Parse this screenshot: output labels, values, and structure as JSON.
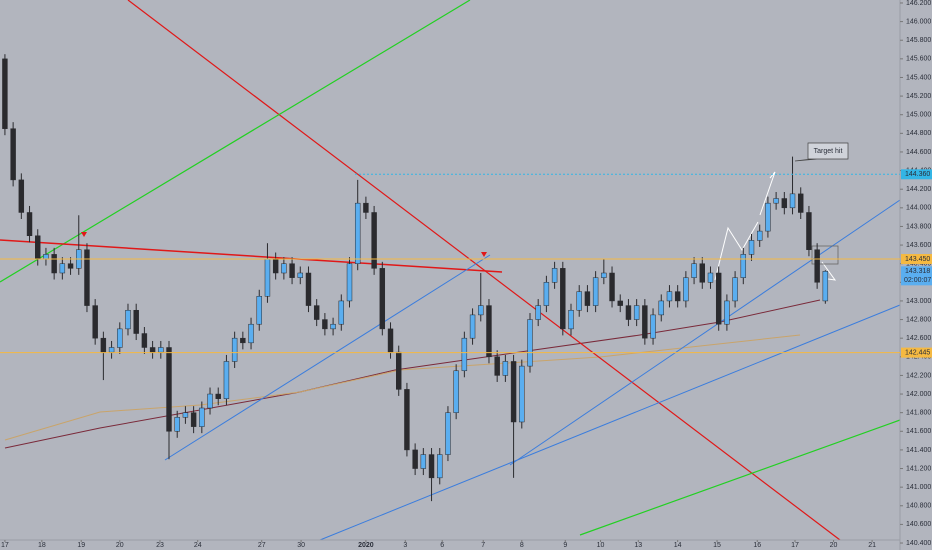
{
  "chart_data": {
    "type": "candlestick",
    "up_color": "#5aaef0",
    "down_color": "#2a2a2e",
    "xlim": [
      -0.6,
      109.1
    ],
    "xticks": [
      {
        "value": 0,
        "label": "17"
      },
      {
        "value": 4.5,
        "label": "18"
      },
      {
        "value": 9.3,
        "label": "19"
      },
      {
        "value": 14,
        "label": "20"
      },
      {
        "value": 18.9,
        "label": "23"
      },
      {
        "value": 23.5,
        "label": "24"
      },
      {
        "value": 31.3,
        "label": "27"
      },
      {
        "value": 36.1,
        "label": "30"
      },
      {
        "value": 44,
        "label": "2020"
      },
      {
        "value": 48.8,
        "label": "3"
      },
      {
        "value": 53.3,
        "label": "6"
      },
      {
        "value": 58.3,
        "label": "7"
      },
      {
        "value": 63,
        "label": "8"
      },
      {
        "value": 68.3,
        "label": "9"
      },
      {
        "value": 72.6,
        "label": "10"
      },
      {
        "value": 77.2,
        "label": "13"
      },
      {
        "value": 82,
        "label": "14"
      },
      {
        "value": 86.8,
        "label": "15"
      },
      {
        "value": 91.7,
        "label": "16"
      },
      {
        "value": 96.3,
        "label": "17"
      },
      {
        "value": 101,
        "label": "20"
      },
      {
        "value": 105.7,
        "label": "21"
      }
    ],
    "ylim": [
      140.368,
      146.232
    ],
    "yticks": [
      {
        "value": 146.2,
        "label": "146.200"
      },
      {
        "value": 146.0,
        "label": "146.000"
      },
      {
        "value": 145.8,
        "label": "145.800"
      },
      {
        "value": 145.6,
        "label": "145.600"
      },
      {
        "value": 145.4,
        "label": "145.400"
      },
      {
        "value": 145.2,
        "label": "145.200"
      },
      {
        "value": 145.0,
        "label": "145.000"
      },
      {
        "value": 144.8,
        "label": "144.800"
      },
      {
        "value": 144.6,
        "label": "144.600"
      },
      {
        "value": 144.4,
        "label": "144.400"
      },
      {
        "value": 144.2,
        "label": "144.200"
      },
      {
        "value": 144.0,
        "label": "144.000"
      },
      {
        "value": 143.8,
        "label": "143.800"
      },
      {
        "value": 143.6,
        "label": "143.600"
      },
      {
        "value": 143.4,
        "label": "143.400"
      },
      {
        "value": 143.2,
        "label": "143.200"
      },
      {
        "value": 143.0,
        "label": "143.000"
      },
      {
        "value": 142.8,
        "label": "142.800"
      },
      {
        "value": 142.6,
        "label": "142.600"
      },
      {
        "value": 142.4,
        "label": "142.400"
      },
      {
        "value": 142.2,
        "label": "142.200"
      },
      {
        "value": 142.0,
        "label": "142.000"
      },
      {
        "value": 141.8,
        "label": "141.800"
      },
      {
        "value": 141.6,
        "label": "141.600"
      },
      {
        "value": 141.4,
        "label": "141.400"
      },
      {
        "value": 141.2,
        "label": "141.200"
      },
      {
        "value": 141.0,
        "label": "141.000"
      },
      {
        "value": 140.8,
        "label": "140.800"
      },
      {
        "value": 140.6,
        "label": "140.600"
      },
      {
        "value": 140.4,
        "label": "140.400"
      }
    ],
    "open": [
      145.6,
      144.85,
      144.3,
      143.95,
      143.7,
      143.45,
      143.5,
      143.3,
      143.4,
      143.35,
      143.55,
      142.95,
      142.6,
      142.45,
      142.5,
      142.7,
      142.9,
      142.65,
      142.5,
      142.45,
      142.5,
      141.6,
      141.75,
      141.8,
      141.65,
      141.85,
      142.0,
      141.95,
      142.35,
      142.6,
      142.55,
      142.75,
      143.05,
      143.45,
      143.3,
      143.4,
      143.25,
      143.3,
      142.95,
      142.8,
      142.7,
      142.75,
      143.0,
      143.4,
      144.05,
      143.95,
      143.35,
      142.7,
      142.45,
      142.05,
      141.4,
      141.2,
      141.35,
      141.1,
      141.35,
      141.8,
      142.25,
      142.6,
      142.85,
      142.95,
      142.4,
      142.2,
      142.35,
      141.7,
      142.3,
      142.8,
      142.95,
      143.2,
      143.35,
      142.7,
      142.9,
      143.1,
      142.95,
      143.25,
      143.3,
      143.0,
      142.95,
      142.8,
      142.95,
      142.6,
      142.85,
      143.0,
      143.1,
      143.0,
      143.25,
      143.4,
      143.2,
      143.3,
      142.75,
      143.0,
      143.25,
      143.5,
      143.65,
      143.75,
      144.05,
      144.1,
      144.0,
      144.15,
      143.95,
      143.55,
      143.0
    ],
    "high": [
      145.65,
      144.92,
      144.37,
      144.02,
      143.77,
      143.57,
      143.57,
      143.47,
      143.47,
      143.92,
      143.62,
      143.02,
      142.67,
      142.57,
      142.77,
      142.97,
      142.97,
      142.72,
      142.57,
      142.57,
      142.57,
      141.82,
      141.87,
      141.87,
      141.92,
      142.07,
      142.07,
      142.42,
      142.67,
      142.67,
      142.82,
      143.12,
      143.62,
      143.52,
      143.47,
      143.47,
      143.37,
      143.37,
      143.02,
      142.87,
      142.82,
      143.07,
      143.47,
      144.3,
      144.12,
      144.02,
      143.42,
      142.77,
      142.52,
      142.12,
      141.47,
      141.42,
      141.42,
      141.42,
      141.87,
      142.32,
      142.67,
      142.92,
      143.3,
      143.02,
      142.47,
      142.42,
      142.42,
      142.37,
      142.87,
      143.02,
      143.27,
      143.42,
      143.42,
      142.97,
      143.17,
      143.17,
      143.32,
      143.45,
      143.37,
      143.07,
      143.02,
      143.02,
      143.02,
      142.92,
      143.07,
      143.17,
      143.17,
      143.32,
      143.47,
      143.47,
      143.37,
      143.37,
      143.07,
      143.32,
      143.57,
      143.72,
      143.82,
      144.12,
      144.17,
      144.17,
      144.55,
      144.22,
      144.02,
      143.62,
      143.33
    ],
    "low": [
      144.78,
      144.23,
      143.88,
      143.63,
      143.38,
      143.38,
      143.23,
      143.23,
      143.28,
      143.28,
      142.88,
      142.53,
      142.15,
      142.38,
      142.43,
      142.63,
      142.58,
      142.43,
      142.38,
      142.38,
      141.3,
      141.53,
      141.68,
      141.58,
      141.58,
      141.78,
      141.88,
      141.88,
      142.28,
      142.48,
      142.48,
      142.68,
      142.98,
      143.23,
      143.23,
      143.18,
      143.18,
      142.88,
      142.73,
      142.63,
      142.63,
      142.68,
      142.93,
      143.33,
      143.88,
      143.28,
      142.63,
      142.38,
      141.98,
      141.33,
      141.13,
      141.13,
      140.85,
      141.03,
      141.28,
      141.73,
      142.18,
      142.53,
      142.78,
      142.33,
      142.13,
      142.13,
      141.1,
      141.63,
      142.23,
      142.73,
      142.88,
      143.13,
      142.63,
      142.63,
      142.83,
      142.88,
      142.88,
      143.18,
      142.93,
      142.88,
      142.73,
      142.73,
      142.53,
      142.53,
      142.78,
      142.93,
      142.93,
      142.93,
      143.18,
      143.13,
      143.13,
      142.68,
      142.68,
      142.93,
      143.18,
      143.43,
      143.58,
      143.68,
      143.98,
      143.93,
      143.93,
      143.88,
      143.48,
      143.13,
      142.97
    ],
    "close": [
      144.85,
      144.3,
      143.95,
      143.7,
      143.45,
      143.5,
      143.3,
      143.4,
      143.35,
      143.55,
      142.95,
      142.6,
      142.45,
      142.5,
      142.7,
      142.9,
      142.65,
      142.5,
      142.45,
      142.5,
      141.6,
      141.75,
      141.8,
      141.65,
      141.85,
      142.0,
      141.95,
      142.35,
      142.6,
      142.55,
      142.75,
      143.05,
      143.45,
      143.3,
      143.4,
      143.25,
      143.3,
      142.95,
      142.8,
      142.7,
      142.75,
      143.0,
      143.4,
      144.05,
      143.95,
      143.35,
      142.7,
      142.45,
      142.05,
      141.4,
      141.2,
      141.35,
      141.1,
      141.35,
      141.8,
      142.25,
      142.6,
      142.85,
      142.95,
      142.4,
      142.2,
      142.35,
      141.7,
      142.3,
      142.8,
      142.95,
      143.2,
      143.35,
      142.7,
      142.9,
      143.1,
      142.95,
      143.25,
      143.3,
      143.0,
      142.95,
      142.8,
      142.95,
      142.6,
      142.85,
      143.0,
      143.1,
      143.0,
      143.25,
      143.4,
      143.2,
      143.3,
      142.75,
      143.0,
      143.25,
      143.5,
      143.65,
      143.75,
      144.05,
      144.1,
      144.0,
      144.15,
      143.95,
      143.55,
      143.2,
      143.318
    ],
    "price_labels": [
      {
        "value": 144.36,
        "label": "144.360",
        "color": "#33b5e5"
      },
      {
        "value": 143.45,
        "label": "143.450",
        "color": "#f5b942"
      },
      {
        "value": 143.318,
        "label": "143.318",
        "color": "#5aaef0"
      },
      {
        "value": 142.445,
        "label": "142.445",
        "color": "#f5b942"
      }
    ],
    "countdown": "02:00:07",
    "annotation": "Target hit"
  }
}
